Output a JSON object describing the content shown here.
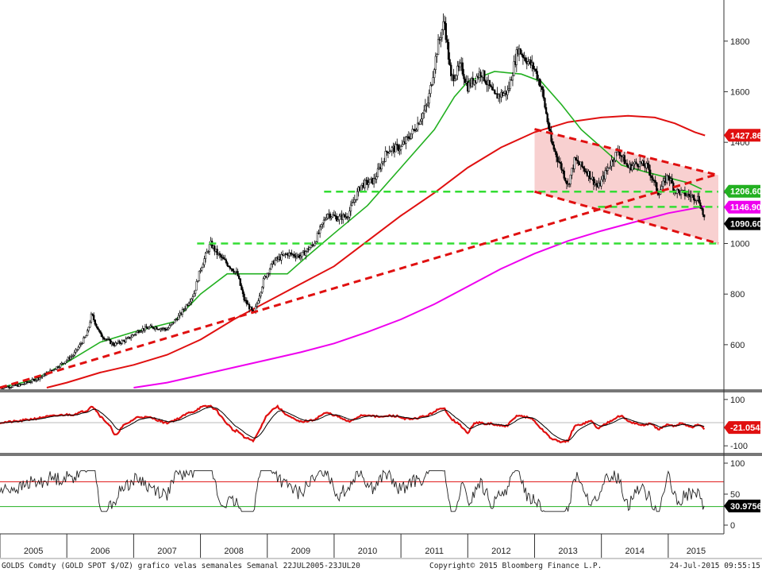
{
  "chart_data": {
    "type": "line",
    "x_years": [
      "2005",
      "2006",
      "2007",
      "2008",
      "2009",
      "2010",
      "2011",
      "2012",
      "2013",
      "2014",
      "2015"
    ],
    "colors": {
      "price": "#000000",
      "ma_green": "#22b020",
      "ma_red": "#e01010",
      "ma_magenta": "#ee00ee",
      "support": "#33dd33",
      "trend": "#e01010",
      "channel_fill": "#f7c8c8"
    },
    "main_panel": {
      "ylim": [
        430,
        1950
      ],
      "y_ticks": [
        600,
        800,
        1000,
        1200,
        1400,
        1600,
        1800
      ],
      "price_path": [
        [
          2005.0,
          430
        ],
        [
          2005.3,
          440
        ],
        [
          2005.6,
          470
        ],
        [
          2005.9,
          520
        ],
        [
          2006.1,
          560
        ],
        [
          2006.3,
          640
        ],
        [
          2006.37,
          720
        ],
        [
          2006.5,
          640
        ],
        [
          2006.7,
          600
        ],
        [
          2006.9,
          620
        ],
        [
          2007.1,
          660
        ],
        [
          2007.3,
          670
        ],
        [
          2007.5,
          660
        ],
        [
          2007.7,
          720
        ],
        [
          2007.9,
          800
        ],
        [
          2008.0,
          900
        ],
        [
          2008.15,
          1000
        ],
        [
          2008.25,
          960
        ],
        [
          2008.4,
          920
        ],
        [
          2008.55,
          880
        ],
        [
          2008.65,
          780
        ],
        [
          2008.8,
          720
        ],
        [
          2008.95,
          860
        ],
        [
          2009.1,
          930
        ],
        [
          2009.3,
          960
        ],
        [
          2009.5,
          950
        ],
        [
          2009.7,
          1000
        ],
        [
          2009.9,
          1120
        ],
        [
          2010.05,
          1100
        ],
        [
          2010.2,
          1110
        ],
        [
          2010.4,
          1230
        ],
        [
          2010.6,
          1250
        ],
        [
          2010.8,
          1370
        ],
        [
          2011.0,
          1380
        ],
        [
          2011.2,
          1450
        ],
        [
          2011.4,
          1550
        ],
        [
          2011.55,
          1780
        ],
        [
          2011.65,
          1880
        ],
        [
          2011.75,
          1650
        ],
        [
          2011.9,
          1700
        ],
        [
          2012.0,
          1620
        ],
        [
          2012.2,
          1680
        ],
        [
          2012.4,
          1580
        ],
        [
          2012.6,
          1600
        ],
        [
          2012.75,
          1770
        ],
        [
          2012.9,
          1720
        ],
        [
          2013.0,
          1690
        ],
        [
          2013.1,
          1620
        ],
        [
          2013.25,
          1400
        ],
        [
          2013.4,
          1300
        ],
        [
          2013.5,
          1230
        ],
        [
          2013.6,
          1330
        ],
        [
          2013.8,
          1280
        ],
        [
          2013.95,
          1220
        ],
        [
          2014.1,
          1300
        ],
        [
          2014.25,
          1370
        ],
        [
          2014.4,
          1300
        ],
        [
          2014.55,
          1320
        ],
        [
          2014.7,
          1300
        ],
        [
          2014.85,
          1200
        ],
        [
          2015.0,
          1270
        ],
        [
          2015.1,
          1210
        ],
        [
          2015.2,
          1200
        ],
        [
          2015.3,
          1190
        ],
        [
          2015.45,
          1180
        ],
        [
          2015.55,
          1090
        ]
      ],
      "ma_green": [
        [
          2005.0,
          430
        ],
        [
          2005.5,
          460
        ],
        [
          2006.0,
          530
        ],
        [
          2006.5,
          610
        ],
        [
          2007.0,
          650
        ],
        [
          2007.6,
          690
        ],
        [
          2008.0,
          800
        ],
        [
          2008.4,
          880
        ],
        [
          2009.0,
          880
        ],
        [
          2009.3,
          880
        ],
        [
          2009.6,
          950
        ],
        [
          2010.0,
          1040
        ],
        [
          2010.5,
          1150
        ],
        [
          2011.0,
          1300
        ],
        [
          2011.5,
          1450
        ],
        [
          2011.8,
          1580
        ],
        [
          2012.0,
          1640
        ],
        [
          2012.4,
          1680
        ],
        [
          2012.8,
          1670
        ],
        [
          2013.1,
          1640
        ],
        [
          2013.4,
          1550
        ],
        [
          2013.7,
          1450
        ],
        [
          2014.0,
          1380
        ],
        [
          2014.3,
          1310
        ],
        [
          2014.7,
          1280
        ],
        [
          2015.0,
          1260
        ],
        [
          2015.3,
          1240
        ],
        [
          2015.5,
          1215
        ]
      ],
      "ma_red": [
        [
          2005.7,
          430
        ],
        [
          2006.0,
          450
        ],
        [
          2006.5,
          490
        ],
        [
          2007.0,
          520
        ],
        [
          2007.5,
          560
        ],
        [
          2008.0,
          620
        ],
        [
          2008.5,
          700
        ],
        [
          2009.0,
          770
        ],
        [
          2009.5,
          840
        ],
        [
          2010.0,
          910
        ],
        [
          2010.5,
          1010
        ],
        [
          2011.0,
          1110
        ],
        [
          2011.5,
          1200
        ],
        [
          2012.0,
          1300
        ],
        [
          2012.5,
          1380
        ],
        [
          2013.0,
          1440
        ],
        [
          2013.5,
          1480
        ],
        [
          2014.0,
          1498
        ],
        [
          2014.4,
          1505
        ],
        [
          2014.8,
          1498
        ],
        [
          2015.1,
          1475
        ],
        [
          2015.4,
          1440
        ],
        [
          2015.55,
          1427
        ]
      ],
      "ma_magenta": [
        [
          2007.0,
          430
        ],
        [
          2007.5,
          450
        ],
        [
          2008.0,
          480
        ],
        [
          2008.5,
          510
        ],
        [
          2009.0,
          540
        ],
        [
          2009.5,
          570
        ],
        [
          2010.0,
          605
        ],
        [
          2010.5,
          650
        ],
        [
          2011.0,
          700
        ],
        [
          2011.5,
          760
        ],
        [
          2012.0,
          830
        ],
        [
          2012.5,
          900
        ],
        [
          2013.0,
          960
        ],
        [
          2013.5,
          1010
        ],
        [
          2014.0,
          1050
        ],
        [
          2014.5,
          1085
        ],
        [
          2015.0,
          1120
        ],
        [
          2015.55,
          1147
        ]
      ],
      "support_lines": [
        {
          "from": [
            2007.95,
            1000
          ],
          "to": [
            2015.75,
            1000
          ]
        },
        {
          "from": [
            2009.85,
            1205
          ],
          "to": [
            2015.75,
            1205
          ]
        },
        {
          "from": [
            2013.95,
            1145
          ],
          "to": [
            2015.75,
            1145
          ]
        }
      ],
      "trend_lines": [
        {
          "from": [
            2005.0,
            430
          ],
          "to": [
            2015.75,
            1275
          ]
        }
      ],
      "channel": {
        "upper": [
          [
            2013.0,
            1452
          ],
          [
            2015.75,
            1270
          ]
        ],
        "lower": [
          [
            2013.0,
            1205
          ],
          [
            2015.75,
            1000
          ]
        ]
      },
      "tags": [
        {
          "value": 1427.86,
          "label": "1427.86",
          "color": "#e01010"
        },
        {
          "value": 1206.6,
          "label": "1206.60",
          "color": "#22b020"
        },
        {
          "value": 1146.9,
          "label": "1146.90",
          "color": "#ee00ee"
        },
        {
          "value": 1090.6,
          "label": "1090.60",
          "color": "#000000"
        }
      ]
    },
    "macd_panel": {
      "ylim": [
        -120,
        120
      ],
      "y_ticks": [
        100,
        -100
      ],
      "tag": {
        "value": -21.0543,
        "label": "-21.0543",
        "color": "#e01010"
      }
    },
    "rsi_panel": {
      "ylim": [
        0,
        100
      ],
      "y_ticks": [
        100,
        50,
        0
      ],
      "overbought": 70,
      "oversold": 30,
      "tag": {
        "value": 30.9756,
        "label": "30.9756",
        "color": "#000000"
      }
    },
    "footer": {
      "left": "GOLDS Comdty (GOLD SPOT $/OZ) grafico velas semanales  Semanal 22JUL2005-23JUL20",
      "center": "Copyright© 2015 Bloomberg Finance L.P.",
      "right": "24-Jul-2015 09:55:15"
    }
  }
}
